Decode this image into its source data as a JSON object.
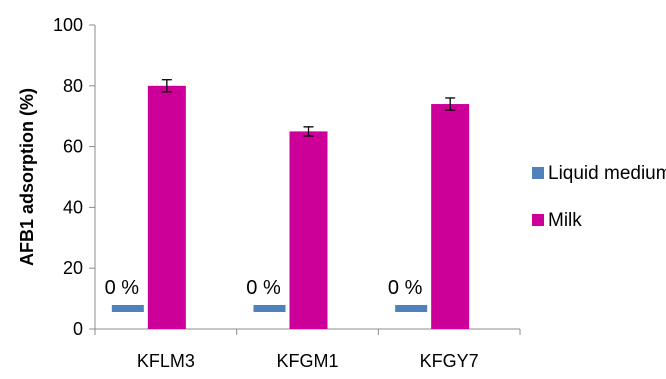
{
  "chart_data": {
    "type": "bar",
    "categories": [
      "KFLM3",
      "KFGM1",
      "KFGY7"
    ],
    "series": [
      {
        "name": "Liquid medium",
        "values": [
          0,
          0,
          0
        ],
        "color": "#4F81BD",
        "value_labels": [
          "0 %",
          "0 %",
          "0 %"
        ]
      },
      {
        "name": "Milk",
        "values": [
          80,
          65,
          74
        ],
        "errors": [
          2,
          1.5,
          2
        ],
        "color": "#CC0099"
      }
    ],
    "ylabel": "AFB1 adsorption (%)",
    "xlabel": "",
    "ylim": [
      0,
      100
    ],
    "yticks": [
      0,
      20,
      40,
      60,
      80,
      100
    ],
    "grid": false,
    "legend_position": "right"
  }
}
